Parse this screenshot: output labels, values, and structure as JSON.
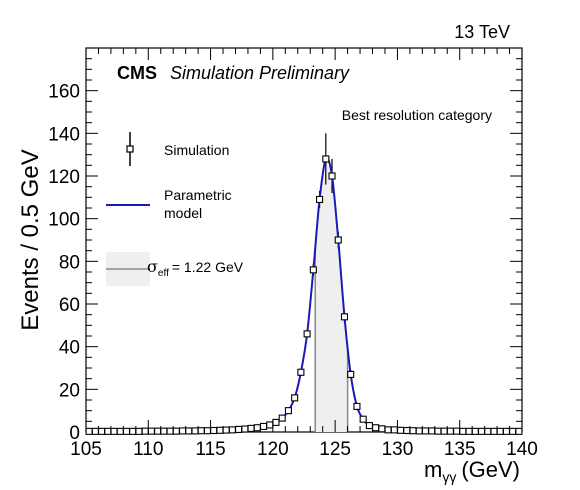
{
  "chart_data": {
    "type": "scatter",
    "energy_label": "13 TeV",
    "experiment": "CMS",
    "status": "Simulation Preliminary",
    "category": "Best resolution category",
    "ylabel": "Events / 0.5 GeV",
    "xlabel_main": "m",
    "xlabel_sub": "γγ",
    "xlabel_unit": "(GeV)",
    "xlim": [
      105,
      140
    ],
    "ylim": [
      0,
      180
    ],
    "x_ticks": [
      "105",
      "110",
      "115",
      "120",
      "125",
      "130",
      "135",
      "140"
    ],
    "y_ticks": [
      "0",
      "20",
      "40",
      "60",
      "80",
      "100",
      "120",
      "140",
      "160"
    ],
    "legend": {
      "simulation": "Simulation",
      "model_line1": "Parametric",
      "model_line2": "model",
      "sigma_symbol": "σ",
      "sigma_sub": "eff",
      "sigma_value": "= 1.22 GeV"
    },
    "sigma_eff_band": [
      123.4,
      126.0
    ],
    "series": [
      {
        "name": "Simulation",
        "x": [
          105.25,
          105.75,
          106.25,
          106.75,
          107.25,
          107.75,
          108.25,
          108.75,
          109.25,
          109.75,
          110.25,
          110.75,
          111.25,
          111.75,
          112.25,
          112.75,
          113.25,
          113.75,
          114.25,
          114.75,
          115.25,
          115.75,
          116.25,
          116.75,
          117.25,
          117.75,
          118.25,
          118.75,
          119.25,
          119.75,
          120.25,
          120.75,
          121.25,
          121.75,
          122.25,
          122.75,
          123.25,
          123.75,
          124.25,
          124.75,
          125.25,
          125.75,
          126.25,
          126.75,
          127.25,
          127.75,
          128.25,
          128.75,
          129.25,
          129.75,
          130.25,
          130.75,
          131.25,
          131.75,
          132.25,
          132.75,
          133.25,
          133.75,
          134.25,
          134.75,
          135.25,
          135.75,
          136.25,
          136.75,
          137.25,
          137.75,
          138.25,
          138.75,
          139.25,
          139.75
        ],
        "y": [
          0.3,
          0.3,
          0.3,
          0.3,
          0.3,
          0.3,
          0.3,
          0.3,
          0.3,
          0.4,
          0.4,
          0.4,
          0.4,
          0.4,
          0.4,
          0.5,
          0.5,
          0.5,
          0.6,
          0.6,
          0.7,
          0.8,
          0.9,
          1.0,
          1.2,
          1.4,
          1.7,
          2.0,
          2.6,
          3.3,
          4.5,
          6.5,
          10,
          16,
          28,
          46,
          76,
          109,
          128,
          120,
          90,
          54,
          27,
          12,
          6,
          3,
          2,
          1.5,
          1,
          1,
          0.8,
          0.7,
          0.6,
          0.5,
          0.5,
          0.5,
          0.4,
          0.4,
          0.4,
          0.4,
          0.3,
          0.3,
          0.3,
          0.3,
          0.3,
          0.3,
          0.3,
          0.3,
          0.3,
          0.3
        ],
        "err": [
          0.3,
          0.3,
          0.3,
          0.3,
          0.3,
          0.3,
          0.3,
          0.3,
          0.3,
          0.3,
          0.3,
          0.3,
          0.3,
          0.3,
          0.3,
          0.3,
          0.3,
          0.3,
          0.3,
          0.3,
          0.3,
          0.3,
          0.3,
          0.4,
          0.4,
          0.4,
          0.5,
          0.5,
          0.6,
          0.6,
          0.7,
          0.8,
          1.0,
          1.3,
          1.6,
          2.0,
          3.0,
          4.0,
          12,
          8,
          4.0,
          3.0,
          2.0,
          1.5,
          1.0,
          0.8,
          0.6,
          0.5,
          0.4,
          0.4,
          0.3,
          0.3,
          0.3,
          0.3,
          0.3,
          0.3,
          0.3,
          0.3,
          0.3,
          0.3,
          0.3,
          0.3,
          0.3,
          0.3,
          0.3,
          0.3,
          0.3,
          0.3,
          0.3,
          0.3
        ]
      },
      {
        "name": "Parametric model",
        "color": "#1a1ab8"
      }
    ]
  }
}
